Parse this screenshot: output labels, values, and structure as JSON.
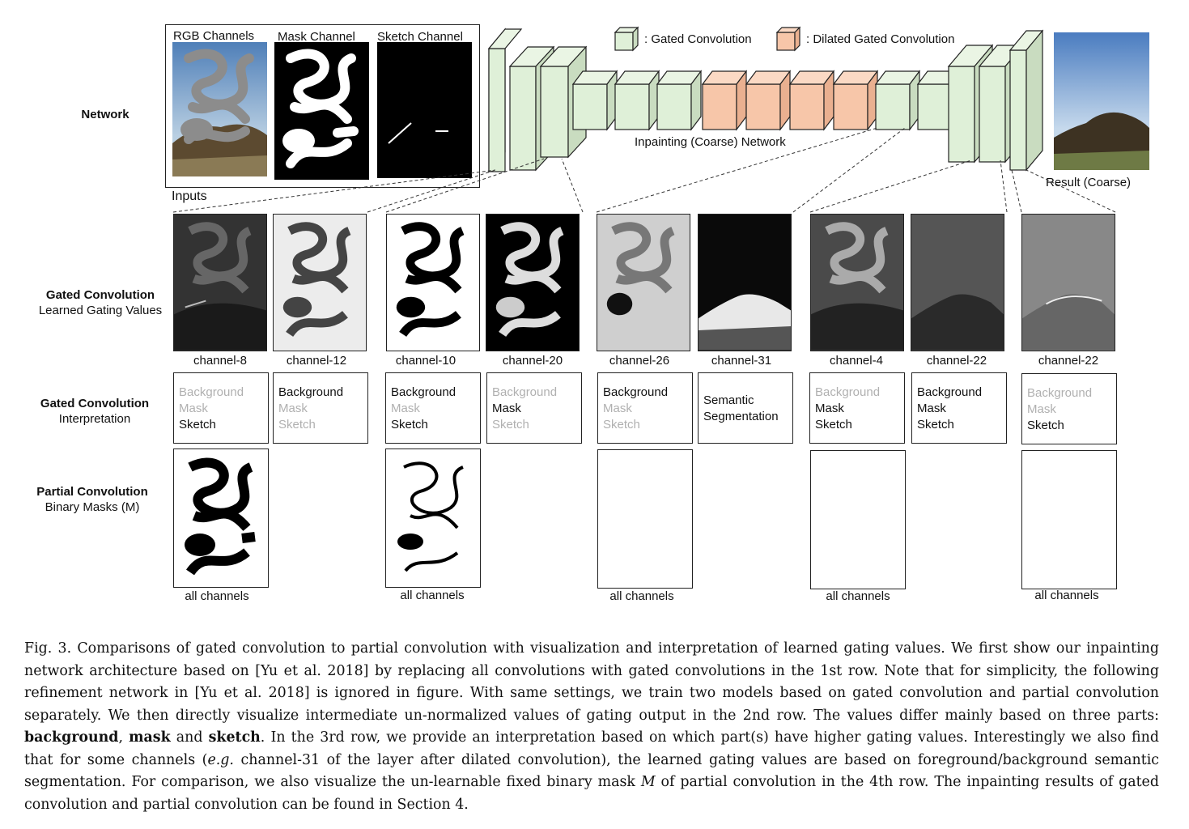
{
  "figure": {
    "network": {
      "row_label": "Network",
      "input_titles": [
        "RGB Channels",
        "Mask Channel",
        "Sketch Channel"
      ],
      "inputs_label": "Inputs",
      "legend_gated": ": Gated Convolution",
      "legend_dilated": ": Dilated Gated Convolution",
      "network_label": "Inpainting (Coarse) Network",
      "result_label": "Result (Coarse)",
      "colors": {
        "gated": "#dff0d8",
        "dilated": "#f7c6a9",
        "edge": "#222222"
      }
    },
    "row2": {
      "label_bold": "Gated Convolution",
      "label_normal": "Learned Gating Values",
      "channels": [
        "channel-8",
        "channel-12",
        "channel-10",
        "channel-20",
        "channel-26",
        "channel-31",
        "channel-4",
        "channel-22",
        "channel-22"
      ]
    },
    "row3": {
      "label_bold": "Gated Convolution",
      "label_normal": "Interpretation",
      "boxes": [
        {
          "a": "Background",
          "b": "Mask",
          "c": "Sketch",
          "on": [
            false,
            false,
            true
          ]
        },
        {
          "a": "Background",
          "b": "Mask",
          "c": "Sketch",
          "on": [
            true,
            false,
            false
          ]
        },
        {
          "a": "Background",
          "b": "Mask",
          "c": "Sketch",
          "on": [
            true,
            false,
            true
          ]
        },
        {
          "a": "Background",
          "b": "Mask",
          "c": "Sketch",
          "on": [
            false,
            true,
            false
          ]
        },
        {
          "a": "Background",
          "b": "Mask",
          "c": "Sketch",
          "on": [
            true,
            false,
            false
          ]
        },
        {
          "a": "Semantic",
          "b": "Segmentation",
          "special": true
        },
        {
          "a": "Background",
          "b": "Mask",
          "c": "Sketch",
          "on": [
            false,
            true,
            true
          ]
        },
        {
          "a": "Background",
          "b": "Mask",
          "c": "Sketch",
          "on": [
            true,
            true,
            true
          ]
        },
        {
          "a": "Background",
          "b": "Mask",
          "c": "Sketch",
          "on": [
            false,
            false,
            true
          ]
        }
      ]
    },
    "row4": {
      "label_bold": "Partial Convolution",
      "label_normal": "Binary Masks (M)",
      "all_channels": [
        "all channels",
        "all channels",
        "all channels",
        "all channels",
        "all channels"
      ]
    }
  },
  "caption": {
    "p1": "Fig. 3.  Comparisons of gated convolution to partial convolution with visualization and interpretation of learned gating values. We first show our inpainting network architecture based on [Yu et al. 2018] by replacing all convolutions with gated convolutions in the 1st row. Note that for simplicity, the following refinement network in [Yu et al. 2018] is ignored in figure. With same settings, we train two models based on gated convolution and partial convolution separately. We then directly visualize intermediate un-normalized values of gating output in the 2nd row. The values differ mainly based on three parts: ",
    "b1": "background",
    "s1": ", ",
    "b2": "mask",
    "s2": " and ",
    "b3": "sketch",
    "p2": ". In the 3rd row, we provide an interpretation based on which part(s) have higher gating values. Interestingly we also find that for some channels (",
    "eg": "e.g.",
    "p3": " channel-31 of the layer after dilated convolution), the learned gating values are based on foreground/background semantic segmentation. For comparison, we also visualize the un-learnable fixed binary mask ",
    "m": "M",
    "p4": " of partial convolution in the 4th row. The inpainting results of gated convolution and partial convolution can be found in Section 4."
  }
}
